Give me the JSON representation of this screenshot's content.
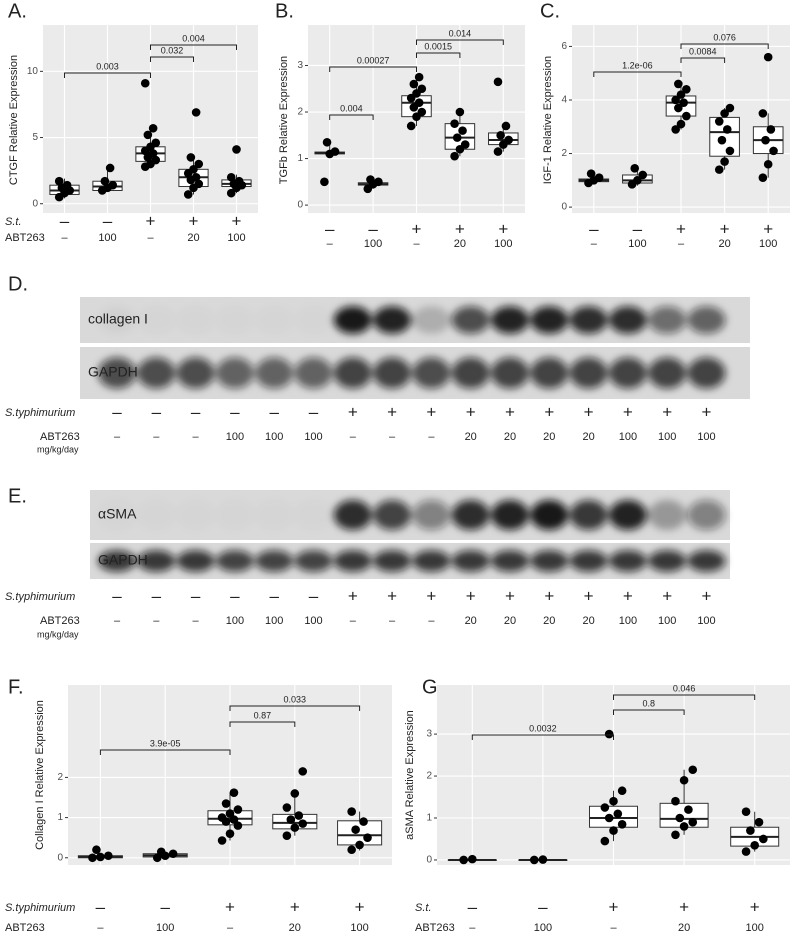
{
  "chart_data": [
    {
      "type": "box",
      "panel_label": "A.",
      "y_label": "CTGF Relative Expression",
      "ylim": [
        -0.7,
        13.5
      ],
      "yticks": [
        0,
        5,
        10
      ],
      "grid": true,
      "rows": [
        {
          "name": "S.t.",
          "labels": [
            "–",
            "–",
            "+",
            "+",
            "+"
          ]
        },
        {
          "name": "ABT263",
          "labels": [
            "–",
            "100",
            "–",
            "20",
            "100"
          ]
        }
      ],
      "boxes": [
        {
          "q1": 0.7,
          "median": 1.0,
          "q3": 1.4,
          "whisker_low": 0.4,
          "whisker_high": 1.9,
          "points": [
            0.5,
            0.8,
            1.0,
            1.2,
            1.4,
            1.7
          ]
        },
        {
          "q1": 1.0,
          "median": 1.3,
          "q3": 1.7,
          "whisker_low": 0.9,
          "whisker_high": 2.7,
          "points": [
            1.0,
            1.2,
            1.4,
            1.7,
            2.7
          ]
        },
        {
          "q1": 3.2,
          "median": 3.8,
          "q3": 4.3,
          "whisker_low": 2.8,
          "whisker_high": 5.7,
          "points": [
            2.8,
            3.0,
            3.3,
            3.5,
            3.8,
            4.0,
            4.3,
            4.6,
            5.2,
            5.7,
            9.1
          ]
        },
        {
          "q1": 1.3,
          "median": 2.0,
          "q3": 2.6,
          "whisker_low": 0.7,
          "whisker_high": 3.5,
          "points": [
            0.7,
            1.2,
            1.5,
            1.8,
            2.0,
            2.3,
            2.6,
            3.0,
            3.5,
            6.9
          ]
        },
        {
          "q1": 1.3,
          "median": 1.5,
          "q3": 1.8,
          "whisker_low": 0.8,
          "whisker_high": 2.2,
          "points": [
            0.8,
            1.2,
            1.4,
            1.5,
            1.7,
            2.0,
            4.1
          ]
        }
      ],
      "comparisons": [
        {
          "groups": [
            0,
            2
          ],
          "label": "0.003"
        },
        {
          "groups": [
            2,
            3
          ],
          "label": "0.032"
        },
        {
          "groups": [
            2,
            4
          ],
          "label": "0.004"
        }
      ]
    },
    {
      "type": "box",
      "panel_label": "B.",
      "y_label": "TGFb Relative Expression",
      "ylim": [
        -0.17,
        3.87
      ],
      "yticks": [
        0,
        1,
        2,
        3
      ],
      "grid": true,
      "rows": [
        {
          "labels": [
            "–",
            "–",
            "+",
            "+",
            "+"
          ]
        },
        {
          "labels": [
            "–",
            "100",
            "–",
            "20",
            "100"
          ]
        }
      ],
      "boxes": [
        {
          "q1": 1.1,
          "median": 1.12,
          "q3": 1.14,
          "whisker_low": 1.1,
          "whisker_high": 1.35,
          "points": [
            0.5,
            1.1,
            1.15,
            1.35
          ]
        },
        {
          "q1": 0.43,
          "median": 0.45,
          "q3": 0.48,
          "whisker_low": 0.35,
          "whisker_high": 0.55,
          "points": [
            0.35,
            0.45,
            0.5,
            0.55
          ]
        },
        {
          "q1": 1.9,
          "median": 2.2,
          "q3": 2.35,
          "whisker_low": 1.7,
          "whisker_high": 2.75,
          "points": [
            1.7,
            1.9,
            2.0,
            2.1,
            2.2,
            2.3,
            2.4,
            2.5,
            2.6,
            2.75
          ]
        },
        {
          "q1": 1.2,
          "median": 1.45,
          "q3": 1.75,
          "whisker_low": 1.05,
          "whisker_high": 2.0,
          "points": [
            1.05,
            1.2,
            1.3,
            1.45,
            1.6,
            1.75,
            2.0
          ]
        },
        {
          "q1": 1.3,
          "median": 1.4,
          "q3": 1.55,
          "whisker_low": 1.15,
          "whisker_high": 1.7,
          "points": [
            1.15,
            1.3,
            1.4,
            1.5,
            1.7,
            2.65
          ]
        }
      ],
      "comparisons": [
        {
          "groups": [
            0,
            1
          ],
          "label": "0.004"
        },
        {
          "groups": [
            0,
            2
          ],
          "label": "0.00027"
        },
        {
          "groups": [
            2,
            3
          ],
          "label": "0.0015"
        },
        {
          "groups": [
            2,
            4
          ],
          "label": "0.014"
        }
      ]
    },
    {
      "type": "box",
      "panel_label": "C.",
      "y_label": "IGF-1 Relative Expression",
      "ylim": [
        -0.22,
        6.8
      ],
      "yticks": [
        0,
        2,
        4,
        6
      ],
      "grid": true,
      "rows": [
        {
          "labels": [
            "–",
            "–",
            "+",
            "+",
            "+"
          ]
        },
        {
          "labels": [
            "–",
            "100",
            "–",
            "20",
            "100"
          ]
        }
      ],
      "boxes": [
        {
          "q1": 0.95,
          "median": 1.0,
          "q3": 1.05,
          "whisker_low": 0.9,
          "whisker_high": 1.2,
          "points": [
            0.9,
            1.0,
            1.1,
            1.25
          ]
        },
        {
          "q1": 0.9,
          "median": 1.0,
          "q3": 1.2,
          "whisker_low": 0.8,
          "whisker_high": 1.45,
          "points": [
            0.85,
            1.0,
            1.2,
            1.45
          ]
        },
        {
          "q1": 3.4,
          "median": 3.9,
          "q3": 4.15,
          "whisker_low": 2.9,
          "whisker_high": 4.6,
          "points": [
            2.9,
            3.1,
            3.4,
            3.7,
            3.9,
            4.0,
            4.2,
            4.4,
            4.6
          ]
        },
        {
          "q1": 1.9,
          "median": 2.8,
          "q3": 3.35,
          "whisker_low": 1.4,
          "whisker_high": 3.7,
          "points": [
            1.4,
            1.7,
            2.1,
            2.5,
            2.9,
            3.2,
            3.5,
            3.7
          ]
        },
        {
          "q1": 2.0,
          "median": 2.5,
          "q3": 3.0,
          "whisker_low": 1.1,
          "whisker_high": 3.5,
          "points": [
            1.1,
            1.6,
            2.1,
            2.5,
            2.9,
            3.5,
            5.6
          ]
        }
      ],
      "comparisons": [
        {
          "groups": [
            0,
            2
          ],
          "label": "1.2e-06"
        },
        {
          "groups": [
            2,
            3
          ],
          "label": "0.0084"
        },
        {
          "groups": [
            2,
            4
          ],
          "label": "0.076"
        }
      ]
    },
    {
      "type": "box",
      "panel_label": "F.",
      "y_label": "Collagen I Relative Expression",
      "ylim": [
        -0.18,
        4.3
      ],
      "yticks": [
        0,
        1,
        2
      ],
      "grid": true,
      "rows": [
        {
          "name": "S.typhimurium",
          "labels": [
            "–",
            "–",
            "+",
            "+",
            "+"
          ]
        },
        {
          "name": "ABT263",
          "labels": [
            "–",
            "100",
            "–",
            "20",
            "100"
          ]
        }
      ],
      "boxes": [
        {
          "q1": 0.0,
          "median": 0.03,
          "q3": 0.05,
          "whisker_low": -0.02,
          "whisker_high": 0.1,
          "points": [
            0.0,
            0.02,
            0.05,
            0.2
          ]
        },
        {
          "q1": 0.02,
          "median": 0.06,
          "q3": 0.1,
          "whisker_low": 0.0,
          "whisker_high": 0.15,
          "points": [
            0.0,
            0.05,
            0.1,
            0.15
          ]
        },
        {
          "q1": 0.82,
          "median": 0.97,
          "q3": 1.17,
          "whisker_low": 0.43,
          "whisker_high": 1.62,
          "points": [
            0.43,
            0.6,
            0.8,
            0.9,
            0.95,
            1.0,
            1.1,
            1.2,
            1.35,
            1.62
          ]
        },
        {
          "q1": 0.72,
          "median": 0.87,
          "q3": 1.08,
          "whisker_low": 0.55,
          "whisker_high": 1.62,
          "points": [
            0.55,
            0.75,
            0.85,
            0.95,
            1.05,
            1.25,
            1.6,
            2.15
          ]
        },
        {
          "q1": 0.32,
          "median": 0.56,
          "q3": 0.92,
          "whisker_low": 0.18,
          "whisker_high": 1.15,
          "points": [
            0.2,
            0.32,
            0.5,
            0.7,
            0.9,
            1.15
          ]
        }
      ],
      "comparisons": [
        {
          "groups": [
            0,
            2
          ],
          "label": "3.9e-05"
        },
        {
          "groups": [
            2,
            3
          ],
          "label": "0.87"
        },
        {
          "groups": [
            2,
            4
          ],
          "label": "0.033"
        }
      ]
    },
    {
      "type": "box",
      "panel_label": "G.",
      "y_label": "aSMA Relative Expression",
      "ylim": [
        -0.12,
        4.17
      ],
      "yticks": [
        0,
        1,
        2,
        3
      ],
      "grid": true,
      "rows": [
        {
          "name": "S.t.",
          "labels": [
            "–",
            "–",
            "+",
            "+",
            "+"
          ]
        },
        {
          "name": "ABT263",
          "labels": [
            "–",
            "100",
            "–",
            "20",
            "100"
          ]
        }
      ],
      "boxes": [
        {
          "q1": 0,
          "median": 0,
          "q3": 0,
          "whisker_low": 0,
          "whisker_high": 0,
          "points": [
            0,
            0.02
          ]
        },
        {
          "q1": 0,
          "median": 0,
          "q3": 0,
          "whisker_low": 0,
          "whisker_high": 0,
          "points": [
            0,
            0.01
          ]
        },
        {
          "q1": 0.78,
          "median": 1.0,
          "q3": 1.28,
          "whisker_low": 0.45,
          "whisker_high": 1.65,
          "points": [
            0.45,
            0.7,
            0.85,
            1.0,
            1.1,
            1.25,
            1.4,
            1.65,
            3.0
          ]
        },
        {
          "q1": 0.78,
          "median": 0.98,
          "q3": 1.35,
          "whisker_low": 0.6,
          "whisker_high": 2.15,
          "points": [
            0.6,
            0.8,
            0.9,
            1.0,
            1.2,
            1.4,
            1.9,
            2.15
          ]
        },
        {
          "q1": 0.33,
          "median": 0.55,
          "q3": 0.78,
          "whisker_low": 0.2,
          "whisker_high": 1.15,
          "points": [
            0.2,
            0.35,
            0.5,
            0.7,
            0.9,
            1.15
          ]
        }
      ],
      "comparisons": [
        {
          "groups": [
            0,
            2
          ],
          "label": "0.0032"
        },
        {
          "groups": [
            2,
            3
          ],
          "label": "0.8"
        },
        {
          "groups": [
            2,
            4
          ],
          "label": "0.046"
        }
      ]
    }
  ],
  "blots": [
    {
      "panel_label": "D.",
      "bands": [
        "collagen I",
        "GAPDH"
      ],
      "rows": [
        {
          "name": "S.typhimurium",
          "labels": [
            "–",
            "–",
            "–",
            "–",
            "–",
            "–",
            "+",
            "+",
            "+",
            "+",
            "+",
            "+",
            "+",
            "+",
            "+",
            "+"
          ]
        },
        {
          "name": "ABT263",
          "unit": "mg/kg/day",
          "labels": [
            "–",
            "–",
            "–",
            "100",
            "100",
            "100",
            "–",
            "–",
            "–",
            "20",
            "20",
            "20",
            "20",
            "100",
            "100",
            "100"
          ]
        }
      ]
    },
    {
      "panel_label": "E.",
      "bands": [
        "αSMA",
        "GAPDH"
      ],
      "rows": [
        {
          "name": "S.typhimurium",
          "labels": [
            "–",
            "–",
            "–",
            "–",
            "–",
            "–",
            "+",
            "+",
            "+",
            "+",
            "+",
            "+",
            "+",
            "+",
            "+",
            "+"
          ]
        },
        {
          "name": "ABT263",
          "unit": "mg/kg/day",
          "labels": [
            "–",
            "–",
            "–",
            "100",
            "100",
            "100",
            "–",
            "–",
            "–",
            "20",
            "20",
            "20",
            "20",
            "100",
            "100",
            "100"
          ]
        }
      ]
    }
  ]
}
